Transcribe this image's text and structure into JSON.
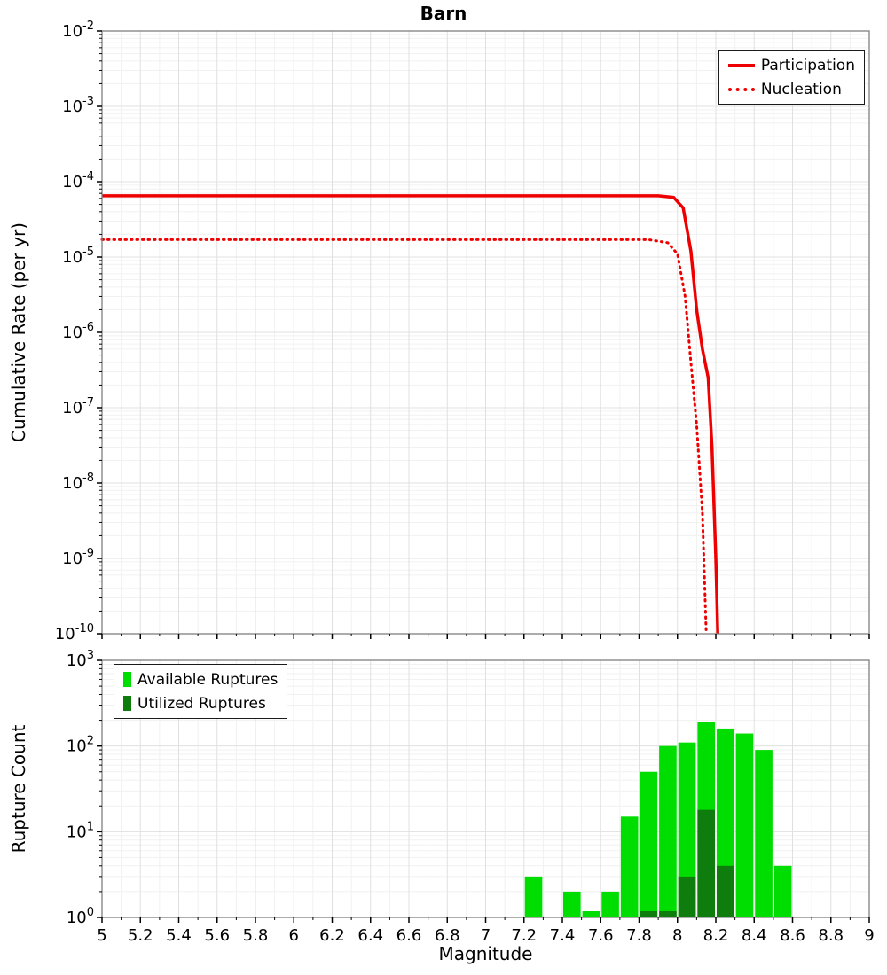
{
  "title": "Barn",
  "chart_data": [
    {
      "type": "line",
      "title": "Barn",
      "xlabel": "",
      "ylabel": "Cumulative Rate (per yr)",
      "x_range": [
        5,
        9
      ],
      "y_scale": "log",
      "y_range_exp": [
        -10,
        -2
      ],
      "grid": true,
      "legend_position": "top-right",
      "series": [
        {
          "name": "Participation",
          "color": "#ee0000",
          "style": "solid",
          "points": [
            [
              5.0,
              6.5e-05
            ],
            [
              6.0,
              6.5e-05
            ],
            [
              7.0,
              6.5e-05
            ],
            [
              7.9,
              6.5e-05
            ],
            [
              7.98,
              6.2e-05
            ],
            [
              8.03,
              4.5e-05
            ],
            [
              8.07,
              1.2e-05
            ],
            [
              8.1,
              2e-06
            ],
            [
              8.13,
              6e-07
            ],
            [
              8.16,
              2.5e-07
            ],
            [
              8.18,
              3e-08
            ],
            [
              8.2,
              1e-09
            ],
            [
              8.21,
              1e-10
            ]
          ]
        },
        {
          "name": "Nucleation",
          "color": "#ee0000",
          "style": "dotted",
          "points": [
            [
              5.0,
              1.7e-05
            ],
            [
              6.0,
              1.7e-05
            ],
            [
              7.0,
              1.7e-05
            ],
            [
              7.85,
              1.7e-05
            ],
            [
              7.95,
              1.55e-05
            ],
            [
              8.0,
              1.1e-05
            ],
            [
              8.04,
              3e-06
            ],
            [
              8.07,
              4e-07
            ],
            [
              8.1,
              6e-08
            ],
            [
              8.13,
              4e-09
            ],
            [
              8.15,
              1e-10
            ]
          ]
        }
      ]
    },
    {
      "type": "bar",
      "title": "",
      "xlabel": "Magnitude",
      "ylabel": "Rupture Count",
      "x_range": [
        5,
        9
      ],
      "y_scale": "log",
      "y_range_exp": [
        0,
        3
      ],
      "grid": true,
      "legend_position": "top-left",
      "bin_width": 0.1,
      "bin_centers": [
        7.25,
        7.45,
        7.55,
        7.65,
        7.75,
        7.85,
        7.95,
        8.05,
        8.15,
        8.25,
        8.35,
        8.45,
        8.55
      ],
      "series": [
        {
          "name": "Available Ruptures",
          "color": "#00dd00",
          "values": [
            3,
            2,
            1,
            2,
            15,
            50,
            100,
            110,
            190,
            160,
            140,
            90,
            4
          ]
        },
        {
          "name": "Utilized Ruptures",
          "color": "#0e7d0e",
          "values": [
            0,
            0,
            0,
            0,
            0,
            1,
            1,
            3,
            18,
            4,
            0,
            0,
            0
          ]
        }
      ],
      "x_tick_labels": [
        "5",
        "5.2",
        "5.4",
        "5.6",
        "5.8",
        "6",
        "6.2",
        "6.4",
        "6.6",
        "6.8",
        "7",
        "7.2",
        "7.4",
        "7.6",
        "7.8",
        "8",
        "8.2",
        "8.4",
        "8.6",
        "8.8",
        "9"
      ],
      "y_tick_exponents": [
        0,
        1,
        2,
        3
      ]
    }
  ]
}
